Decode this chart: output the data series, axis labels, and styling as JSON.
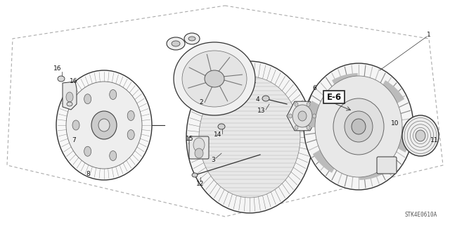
{
  "background_color": "#ffffff",
  "diagram_code": "STK4E0610A",
  "e6_label": "E-6",
  "border_dash": [
    4,
    3
  ],
  "border_color": "#aaaaaa",
  "border_lw": 0.8,
  "line_color": "#333333",
  "line_lw": 0.7,
  "label_fontsize": 6.5,
  "label_color": "#111111",
  "e6_fontsize": 8.5,
  "code_fontsize": 5.5
}
